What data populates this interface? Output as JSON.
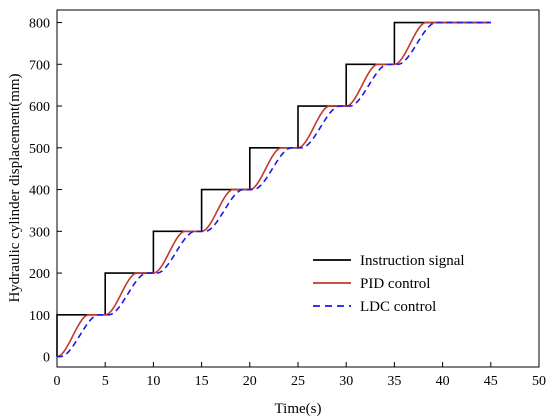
{
  "chart_data": {
    "type": "line",
    "xlabel": "Time(s)",
    "ylabel": "Hydraulic cylinder displacement(mm)",
    "xlim": [
      0,
      50
    ],
    "ylim": [
      -25,
      830
    ],
    "xticks": [
      0,
      5,
      10,
      15,
      20,
      25,
      30,
      35,
      40,
      45,
      50
    ],
    "yticks": [
      0,
      100,
      200,
      300,
      400,
      500,
      600,
      700,
      800
    ],
    "grid": false,
    "legend_position": "right-lower",
    "step_interval_s": 5,
    "step_size_mm": 100,
    "final_time_s": 45,
    "final_value_mm": 800,
    "series": [
      {
        "name": "Instruction signal",
        "color": "#000000",
        "dash": "solid",
        "kind": "step"
      },
      {
        "name": "PID control",
        "color": "#c0392b",
        "dash": "solid",
        "kind": "response",
        "lag_s": 0.0,
        "rise_s": 3.3
      },
      {
        "name": "LDC control",
        "color": "#1a1ae6",
        "dash": "dashed",
        "kind": "response",
        "lag_s": 0.35,
        "rise_s": 4.0
      }
    ]
  }
}
